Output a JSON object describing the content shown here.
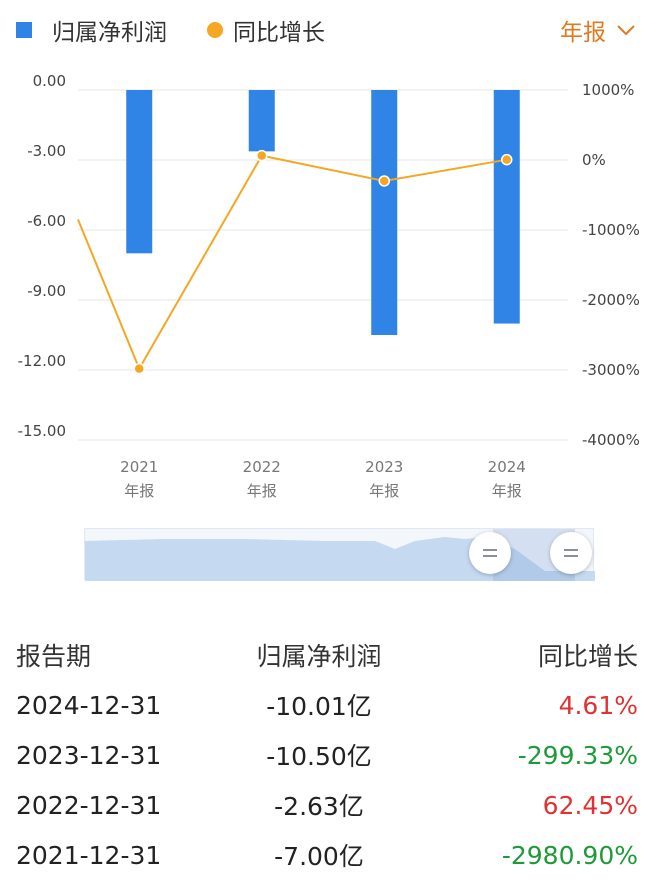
{
  "legend": {
    "bar_label": "归属净利润",
    "line_label": "同比增长"
  },
  "period_selector": "年报",
  "chart_data": {
    "type": "bar",
    "categories": [
      "2021",
      "2022",
      "2023",
      "2024"
    ],
    "category_sublabel": "年报",
    "series": [
      {
        "name": "归属净利润",
        "type": "bar",
        "axis": "left",
        "values": [
          -7.0,
          -2.63,
          -10.5,
          -10.01
        ],
        "color": "#2f84e5"
      },
      {
        "name": "同比增长",
        "type": "line",
        "axis": "right",
        "values": [
          -2980.9,
          62.45,
          -299.33,
          4.61
        ],
        "color": "#f5a623"
      }
    ],
    "y_left": {
      "ylim": [
        -15,
        0
      ],
      "ticks": [
        0,
        -3,
        -6,
        -9,
        -12,
        -15
      ],
      "tick_labels": [
        "0.00",
        "-3.00",
        "-6.00",
        "-9.00",
        "-12.00",
        "-15.00"
      ]
    },
    "y_right": {
      "ylim": [
        -4000,
        1000
      ],
      "ticks": [
        1000,
        0,
        -1000,
        -2000,
        -3000,
        -4000
      ],
      "tick_labels": [
        "1000%",
        "0%",
        "-1000%",
        "-2000%",
        "-3000%",
        "-4000%"
      ]
    },
    "grid": true
  },
  "table": {
    "headers": [
      "报告期",
      "归属净利润",
      "同比增长"
    ],
    "rows": [
      {
        "period": "2024-12-31",
        "profit": "-10.01亿",
        "growth": "4.61%",
        "trend": "up"
      },
      {
        "period": "2023-12-31",
        "profit": "-10.50亿",
        "growth": "-299.33%",
        "trend": "down"
      },
      {
        "period": "2022-12-31",
        "profit": "-2.63亿",
        "growth": "62.45%",
        "trend": "up"
      },
      {
        "period": "2021-12-31",
        "profit": "-7.00亿",
        "growth": "-2980.90%",
        "trend": "down"
      }
    ]
  }
}
